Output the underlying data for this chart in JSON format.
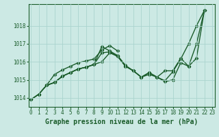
{
  "xlabel": "Graphe pression niveau de la mer (hPa)",
  "background_color": "#cce9e4",
  "grid_color": "#aad4ce",
  "line_color": "#1a5c2a",
  "ylim": [
    1013.5,
    1019.2
  ],
  "xlim": [
    -0.3,
    23.3
  ],
  "yticks": [
    1014,
    1015,
    1016,
    1017,
    1018
  ],
  "xticks": [
    0,
    1,
    2,
    3,
    4,
    5,
    6,
    7,
    8,
    9,
    10,
    11,
    12,
    13,
    14,
    15,
    16,
    17,
    18,
    19,
    20,
    21,
    22,
    23
  ],
  "series": [
    {
      "x": [
        0,
        1,
        2,
        3,
        4,
        5,
        6,
        7,
        8,
        9,
        10,
        11,
        12,
        13,
        14,
        15,
        16,
        17,
        18,
        19,
        20,
        21,
        22
      ],
      "y": [
        1013.9,
        1014.2,
        1014.7,
        1014.85,
        1015.2,
        1015.4,
        1015.6,
        1015.7,
        1015.85,
        1016.85,
        1016.6,
        1016.35,
        1015.8,
        1015.5,
        1015.15,
        1015.4,
        1015.15,
        1014.95,
        1015.45,
        1016.15,
        1017.0,
        1018.0,
        1018.85
      ]
    },
    {
      "x": [
        0,
        1,
        2,
        3,
        4,
        5,
        6,
        7,
        8,
        9,
        10,
        11,
        12,
        13,
        14,
        15,
        16,
        17,
        18,
        19,
        20,
        21,
        22
      ],
      "y": [
        1013.9,
        1014.2,
        1014.7,
        1014.85,
        1015.2,
        1015.4,
        1015.6,
        1015.7,
        1015.85,
        1016.5,
        1016.55,
        1016.3,
        1015.75,
        1015.5,
        1015.15,
        1015.4,
        1015.15,
        1015.5,
        1015.5,
        1016.2,
        1015.75,
        1017.0,
        1018.85
      ]
    },
    {
      "x": [
        0,
        1,
        2,
        3,
        4,
        5,
        6,
        7,
        8,
        9,
        10,
        11,
        12,
        13,
        14,
        15,
        16,
        17,
        18,
        19,
        20,
        21,
        22
      ],
      "y": [
        1013.9,
        1014.2,
        1014.7,
        1014.85,
        1015.2,
        1015.4,
        1015.6,
        1015.7,
        1015.85,
        1016.0,
        1016.5,
        1016.3,
        1015.75,
        1015.5,
        1015.15,
        1015.3,
        1015.15,
        1014.9,
        1015.0,
        1015.95,
        1015.75,
        1016.2,
        1018.85
      ]
    },
    {
      "x": [
        2,
        3,
        4,
        5,
        6,
        7,
        8,
        9,
        10,
        11
      ],
      "y": [
        1014.7,
        1015.3,
        1015.55,
        1015.75,
        1015.95,
        1016.05,
        1016.15,
        1016.65,
        1016.9,
        1016.6
      ]
    }
  ],
  "marker": "D",
  "markersize": 2.5,
  "linewidth": 1.0,
  "xlabel_fontsize": 7,
  "tick_fontsize": 5.5
}
